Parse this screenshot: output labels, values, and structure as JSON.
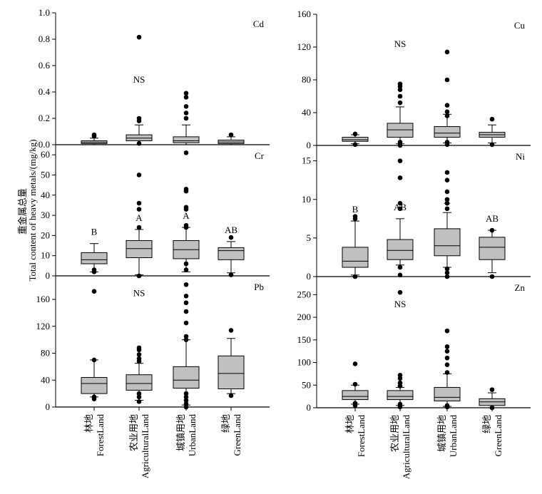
{
  "figure": {
    "ylabel_cn": "重金属总量",
    "ylabel_en": "Total content of heavy metals/(mg/kg)"
  },
  "colors": {
    "box_fill": "#c0c0c0",
    "stroke": "#000000",
    "outlier": "#000000"
  },
  "categories": [
    {
      "cn": "林地",
      "en": "ForestLand"
    },
    {
      "cn": "农业用地",
      "en": "AgriculturalLand"
    },
    {
      "cn": "城镇用地",
      "en": "UrbanLand"
    },
    {
      "cn": "绿地",
      "en": "GreenLand"
    }
  ],
  "chart_data": [
    {
      "type": "box",
      "metal": "Cd",
      "ylim": [
        0,
        1.0
      ],
      "yticks": [
        "0.0",
        "0.2",
        "0.4",
        "0.6",
        "0.8",
        "1.0"
      ],
      "boxes": [
        {
          "q1": 0.008,
          "median": 0.018,
          "q3": 0.03,
          "wlo": 0.0,
          "whi": 0.05,
          "outliers": [
            0.065,
            0.075
          ],
          "sig": ""
        },
        {
          "q1": 0.03,
          "median": 0.05,
          "q3": 0.075,
          "wlo": 0.0,
          "whi": 0.15,
          "outliers": [
            0.01,
            0.18,
            0.2,
            0.815
          ],
          "sig": ""
        },
        {
          "q1": 0.015,
          "median": 0.03,
          "q3": 0.06,
          "wlo": 0.0,
          "whi": 0.15,
          "outliers": [
            0.2,
            0.24,
            0.29,
            0.36,
            0.39
          ],
          "sig": ""
        },
        {
          "q1": 0.008,
          "median": 0.02,
          "q3": 0.035,
          "wlo": 0.0,
          "whi": 0.06,
          "outliers": [
            0.075
          ],
          "sig": ""
        }
      ],
      "annotations": [
        {
          "text": "NS",
          "x": 2.0,
          "y": 0.47
        }
      ]
    },
    {
      "type": "box",
      "metal": "Cu",
      "ylim": [
        0,
        160
      ],
      "yticks": [
        "0",
        "40",
        "80",
        "120",
        "160"
      ],
      "boxes": [
        {
          "q1": 5,
          "median": 7,
          "q3": 10,
          "wlo": 2,
          "whi": 13,
          "outliers": [
            1,
            14
          ],
          "sig": ""
        },
        {
          "q1": 10,
          "median": 19,
          "q3": 27,
          "wlo": 2,
          "whi": 47,
          "outliers": [
            0,
            4,
            52,
            60,
            68,
            72,
            75
          ],
          "sig": ""
        },
        {
          "q1": 10,
          "median": 15,
          "q3": 23,
          "wlo": 3,
          "whi": 38,
          "outliers": [
            1,
            4,
            36,
            41,
            49,
            80,
            114
          ],
          "sig": ""
        },
        {
          "q1": 10,
          "median": 13,
          "q3": 16,
          "wlo": 3,
          "whi": 25,
          "outliers": [
            1,
            32
          ],
          "sig": ""
        }
      ],
      "annotations": [
        {
          "text": "NS",
          "x": 2.0,
          "y": 120
        }
      ]
    },
    {
      "type": "box",
      "metal": "Cr",
      "ylim": [
        0,
        65
      ],
      "yticks": [
        "0",
        "10",
        "20",
        "30",
        "40",
        "50",
        "60"
      ],
      "boxes": [
        {
          "q1": 6,
          "median": 8,
          "q3": 11.5,
          "wlo": 2,
          "whi": 16,
          "outliers": [
            2,
            3
          ],
          "sig": "B"
        },
        {
          "q1": 9,
          "median": 13.5,
          "q3": 17.5,
          "wlo": 0.5,
          "whi": 23,
          "outliers": [
            0,
            24,
            33,
            36,
            50
          ],
          "sig": "A"
        },
        {
          "q1": 8.5,
          "median": 13,
          "q3": 17.5,
          "wlo": 2,
          "whi": 24,
          "outliers": [
            3,
            6,
            24,
            25,
            33,
            34,
            42,
            43,
            61
          ],
          "sig": "A"
        },
        {
          "q1": 8,
          "median": 12.5,
          "q3": 14,
          "wlo": 1.5,
          "whi": 17,
          "outliers": [
            0.5,
            19
          ],
          "sig": "AB"
        }
      ],
      "annotations": []
    },
    {
      "type": "box",
      "metal": "Ni",
      "ylim": [
        0,
        17
      ],
      "yticks": [
        "0",
        "5",
        "10",
        "15"
      ],
      "boxes": [
        {
          "q1": 1.2,
          "median": 2.0,
          "q3": 3.8,
          "wlo": 0.2,
          "whi": 7.2,
          "outliers": [
            0,
            7.5,
            7.8
          ],
          "sig": "B"
        },
        {
          "q1": 2.2,
          "median": 3.4,
          "q3": 4.8,
          "wlo": 1.5,
          "whi": 7.5,
          "outliers": [
            0.2,
            1.2,
            8.8,
            9.5,
            12.8,
            15
          ],
          "sig": "AB"
        },
        {
          "q1": 2.7,
          "median": 4.0,
          "q3": 6.2,
          "wlo": 1.2,
          "whi": 8.3,
          "outliers": [
            0,
            0.5,
            1,
            8.8,
            9.5,
            10,
            11,
            12.5,
            13.5
          ],
          "sig": "A"
        },
        {
          "q1": 2.2,
          "median": 3.8,
          "q3": 5.1,
          "wlo": 0.5,
          "whi": 6,
          "outliers": [
            0,
            6
          ],
          "sig": "AB"
        }
      ],
      "annotations": []
    },
    {
      "type": "box",
      "metal": "Pb",
      "ylim": [
        0,
        195
      ],
      "yticks": [
        "0",
        "40",
        "80",
        "120",
        "160"
      ],
      "boxes": [
        {
          "q1": 20,
          "median": 35,
          "q3": 44,
          "wlo": 15,
          "whi": 70,
          "outliers": [
            12,
            15,
            70,
            172
          ],
          "sig": ""
        },
        {
          "q1": 25,
          "median": 35,
          "q3": 48,
          "wlo": 10,
          "whi": 65,
          "outliers": [
            8,
            15,
            20,
            68,
            72,
            78,
            85,
            88
          ],
          "sig": ""
        },
        {
          "q1": 28,
          "median": 40,
          "q3": 60,
          "wlo": 3,
          "whi": 100,
          "outliers": [
            0,
            5,
            10,
            15,
            20,
            100,
            105,
            125,
            142,
            155,
            165,
            182
          ],
          "sig": ""
        },
        {
          "q1": 27,
          "median": 50,
          "q3": 76,
          "wlo": 20,
          "whi": 102,
          "outliers": [
            17,
            114
          ],
          "sig": ""
        }
      ],
      "annotations": [
        {
          "text": "NS",
          "x": 2.0,
          "y": 165
        }
      ]
    },
    {
      "type": "box",
      "metal": "Zn",
      "ylim": [
        0,
        290
      ],
      "yticks": [
        "0",
        "50",
        "100",
        "150",
        "200",
        "250"
      ],
      "boxes": [
        {
          "q1": 18,
          "median": 25,
          "q3": 38,
          "wlo": 8,
          "whi": 50,
          "outliers": [
            5,
            10,
            52,
            97
          ],
          "sig": ""
        },
        {
          "q1": 18,
          "median": 25,
          "q3": 38,
          "wlo": 5,
          "whi": 45,
          "outliers": [
            2,
            8,
            48,
            55,
            65,
            72,
            255
          ],
          "sig": ""
        },
        {
          "q1": 15,
          "median": 23,
          "q3": 45,
          "wlo": 3,
          "whi": 75,
          "outliers": [
            2,
            5,
            78,
            95,
            110,
            125,
            135,
            170
          ],
          "sig": ""
        },
        {
          "q1": 5,
          "median": 13,
          "q3": 20,
          "wlo": 0,
          "whi": 33,
          "outliers": [
            0,
            40
          ],
          "sig": ""
        }
      ],
      "annotations": [
        {
          "text": "NS",
          "x": 2.0,
          "y": 222
        }
      ]
    }
  ]
}
